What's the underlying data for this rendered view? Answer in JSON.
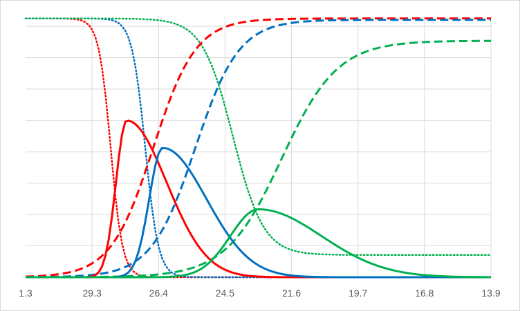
{
  "chart_data": {
    "type": "line",
    "title": "",
    "xlabel": "",
    "ylabel": "",
    "x_tick_labels": [
      "1.3",
      "29.3",
      "26.4",
      "24.5",
      "21.6",
      "19.7",
      "16.8",
      "13.9"
    ],
    "x_tick_positions": [
      0,
      1,
      2,
      3,
      4,
      5,
      6,
      7
    ],
    "xlim": [
      0,
      7
    ],
    "ylim": [
      0,
      1
    ],
    "y_gridlines": [
      0.12,
      0.24,
      0.36,
      0.48,
      0.6,
      0.72,
      0.84,
      0.96
    ],
    "grid": true,
    "legend": "none",
    "x_sample_step": 0.05,
    "series": [
      {
        "color": "#ff0000",
        "style": "dotted",
        "shape": {
          "kind": "fall",
          "top": 0.99,
          "bottom": 0.0,
          "center": 1.28,
          "width": 0.09
        }
      },
      {
        "color": "#0070c0",
        "style": "dotted",
        "shape": {
          "kind": "fall",
          "top": 0.99,
          "bottom": 0.0,
          "center": 1.8,
          "width": 0.1
        }
      },
      {
        "color": "#00b050",
        "style": "dotted",
        "shape": {
          "kind": "fall",
          "top": 0.99,
          "bottom": 0.085,
          "center": 3.12,
          "width": 0.23
        }
      },
      {
        "color": "#ff0000",
        "style": "dashed",
        "shape": {
          "kind": "rise",
          "top": 0.99,
          "bottom": 0.0,
          "center": 1.92,
          "width": 0.32
        }
      },
      {
        "color": "#0070c0",
        "style": "dashed",
        "shape": {
          "kind": "rise",
          "top": 0.985,
          "bottom": 0.0,
          "center": 2.55,
          "width": 0.33
        }
      },
      {
        "color": "#00b050",
        "style": "dashed",
        "shape": {
          "kind": "rise",
          "top": 0.905,
          "bottom": 0.0,
          "center": 3.85,
          "width": 0.42
        }
      },
      {
        "color": "#ff0000",
        "style": "solid",
        "shape": {
          "kind": "peak",
          "height": 0.6,
          "center": 1.52,
          "rise": 0.16,
          "fall": 0.6
        }
      },
      {
        "color": "#0070c0",
        "style": "solid",
        "shape": {
          "kind": "peak",
          "height": 0.495,
          "center": 2.06,
          "rise": 0.2,
          "fall": 0.66
        }
      },
      {
        "color": "#00b050",
        "style": "solid",
        "shape": {
          "kind": "peak",
          "height": 0.26,
          "center": 3.5,
          "rise": 0.42,
          "fall": 0.95
        }
      }
    ]
  }
}
